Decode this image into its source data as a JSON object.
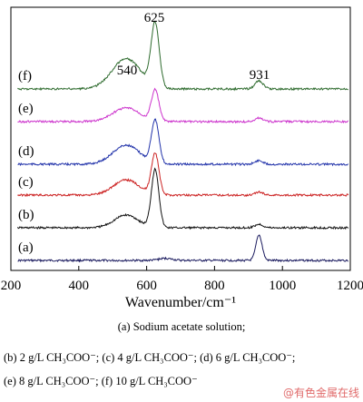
{
  "chart_data": {
    "type": "line",
    "title": "",
    "xlabel": "Wavenumber/cm⁻¹",
    "ylabel": "",
    "xlim": [
      200,
      1200
    ],
    "xticks": [
      200,
      400,
      600,
      800,
      1000,
      1200
    ],
    "grid": false,
    "annotations": [
      {
        "text": "625",
        "x": 625
      },
      {
        "text": "540",
        "x": 540
      },
      {
        "text": "931",
        "x": 931
      }
    ],
    "series": [
      {
        "name": "(a)",
        "color": "#1a1a5e",
        "peaks": [
          [
            931,
            1.0,
            9
          ],
          [
            655,
            0.08,
            20
          ]
        ]
      },
      {
        "name": "(b)",
        "color": "#111111",
        "peaks": [
          [
            625,
            1.0,
            11
          ],
          [
            540,
            0.22,
            35
          ],
          [
            931,
            0.06,
            12
          ]
        ]
      },
      {
        "name": "(c)",
        "color": "#cc2222",
        "peaks": [
          [
            625,
            0.95,
            11
          ],
          [
            540,
            0.35,
            38
          ],
          [
            931,
            0.07,
            12
          ]
        ]
      },
      {
        "name": "(d)",
        "color": "#2233aa",
        "peaks": [
          [
            625,
            0.95,
            11
          ],
          [
            540,
            0.42,
            40
          ],
          [
            931,
            0.08,
            12
          ]
        ]
      },
      {
        "name": "(e)",
        "color": "#cc33cc",
        "peaks": [
          [
            625,
            0.85,
            11
          ],
          [
            540,
            0.38,
            40
          ],
          [
            931,
            0.1,
            12
          ]
        ]
      },
      {
        "name": "(f)",
        "color": "#2e6b2e",
        "peaks": [
          [
            625,
            0.95,
            12
          ],
          [
            540,
            0.45,
            42
          ],
          [
            931,
            0.12,
            12
          ]
        ]
      }
    ]
  },
  "captions": {
    "line1": "(a)  Sodium acetate solution;",
    "line2": "(b) 2 g/L CH₃COO⁻; (c) 4 g/L CH₃COO⁻; (d) 6 g/L CH₃COO⁻;",
    "line3": "(e) 8 g/L CH₃COO⁻; (f) 10 g/L CH₃COO⁻"
  },
  "watermark": "@有色金属在线"
}
